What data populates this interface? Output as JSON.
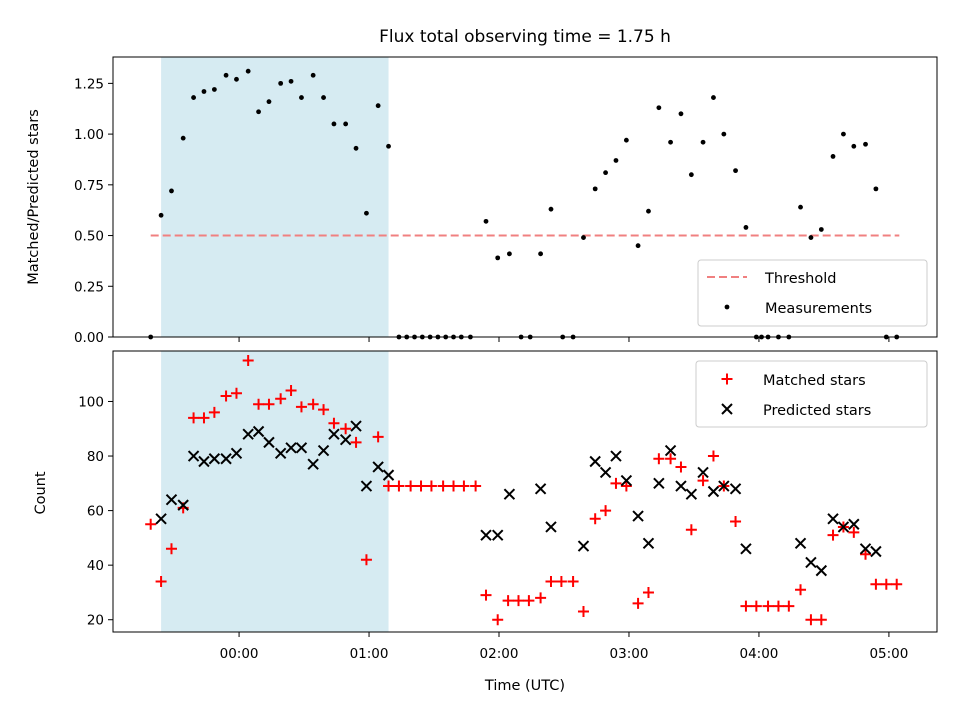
{
  "chart_data": {
    "title": "Flux total observing time = 1.75 h",
    "xlabel": "Time (UTC)",
    "x_units": "hours relative to 00:00 UTC",
    "x_ticks": [
      {
        "value": 0,
        "label": "00:00"
      },
      {
        "value": 1,
        "label": "01:00"
      },
      {
        "value": 2,
        "label": "02:00"
      },
      {
        "value": 3,
        "label": "03:00"
      },
      {
        "value": 4,
        "label": "04:00"
      },
      {
        "value": 5,
        "label": "05:00"
      }
    ],
    "xlim": [
      -0.97,
      5.37
    ],
    "highlight": {
      "type": "shaded-region",
      "color": "#add8e6",
      "x": [
        -0.6,
        1.15
      ]
    },
    "panels": [
      {
        "type": "scatter",
        "ylabel": "Matched/Predicted stars",
        "ylim": [
          0,
          1.38
        ],
        "y_ticks": [
          {
            "value": 0.0,
            "label": "0.00"
          },
          {
            "value": 0.25,
            "label": "0.25"
          },
          {
            "value": 0.5,
            "label": "0.50"
          },
          {
            "value": 0.75,
            "label": "0.75"
          },
          {
            "value": 1.0,
            "label": "1.00"
          },
          {
            "value": 1.25,
            "label": "1.25"
          }
        ],
        "legend_position": "lower-right",
        "threshold": {
          "name": "Threshold",
          "y": 0.5,
          "x": [
            -0.68,
            5.08
          ],
          "color": "#f08080",
          "style": "dashed"
        },
        "series": [
          {
            "name": "Measurements",
            "marker": "dot",
            "color": "#000000",
            "points": [
              [
                -0.68,
                0.0
              ],
              [
                -0.6,
                0.6
              ],
              [
                -0.52,
                0.72
              ],
              [
                -0.43,
                0.98
              ],
              [
                -0.35,
                1.18
              ],
              [
                -0.27,
                1.21
              ],
              [
                -0.19,
                1.22
              ],
              [
                -0.1,
                1.29
              ],
              [
                -0.02,
                1.27
              ],
              [
                0.07,
                1.31
              ],
              [
                0.15,
                1.11
              ],
              [
                0.23,
                1.16
              ],
              [
                0.32,
                1.25
              ],
              [
                0.4,
                1.26
              ],
              [
                0.48,
                1.18
              ],
              [
                0.57,
                1.29
              ],
              [
                0.65,
                1.18
              ],
              [
                0.73,
                1.05
              ],
              [
                0.82,
                1.05
              ],
              [
                0.9,
                0.93
              ],
              [
                0.98,
                0.61
              ],
              [
                1.07,
                1.14
              ],
              [
                1.15,
                0.94
              ],
              [
                1.23,
                0.0
              ],
              [
                1.29,
                0.0
              ],
              [
                1.35,
                0.0
              ],
              [
                1.41,
                0.0
              ],
              [
                1.47,
                0.0
              ],
              [
                1.53,
                0.0
              ],
              [
                1.59,
                0.0
              ],
              [
                1.65,
                0.0
              ],
              [
                1.71,
                0.0
              ],
              [
                1.78,
                0.0
              ],
              [
                1.9,
                0.57
              ],
              [
                1.99,
                0.39
              ],
              [
                2.08,
                0.41
              ],
              [
                2.17,
                0.0
              ],
              [
                2.24,
                0.0
              ],
              [
                2.32,
                0.41
              ],
              [
                2.4,
                0.63
              ],
              [
                2.49,
                0.0
              ],
              [
                2.57,
                0.0
              ],
              [
                2.65,
                0.49
              ],
              [
                2.74,
                0.73
              ],
              [
                2.82,
                0.81
              ],
              [
                2.9,
                0.87
              ],
              [
                2.98,
                0.97
              ],
              [
                3.07,
                0.45
              ],
              [
                3.15,
                0.62
              ],
              [
                3.23,
                1.13
              ],
              [
                3.32,
                0.96
              ],
              [
                3.4,
                1.1
              ],
              [
                3.48,
                0.8
              ],
              [
                3.57,
                0.96
              ],
              [
                3.65,
                1.18
              ],
              [
                3.73,
                1.0
              ],
              [
                3.82,
                0.82
              ],
              [
                3.9,
                0.54
              ],
              [
                3.98,
                0.0
              ],
              [
                4.02,
                0.0
              ],
              [
                4.07,
                0.0
              ],
              [
                4.15,
                0.0
              ],
              [
                4.23,
                0.0
              ],
              [
                4.32,
                0.64
              ],
              [
                4.4,
                0.49
              ],
              [
                4.48,
                0.53
              ],
              [
                4.57,
                0.89
              ],
              [
                4.65,
                1.0
              ],
              [
                4.73,
                0.94
              ],
              [
                4.82,
                0.95
              ],
              [
                4.9,
                0.73
              ],
              [
                4.98,
                0.0
              ],
              [
                5.06,
                0.0
              ]
            ]
          }
        ]
      },
      {
        "type": "scatter",
        "ylabel": "Count",
        "ylim": [
          15.5,
          118.5
        ],
        "y_ticks": [
          {
            "value": 20,
            "label": "20"
          },
          {
            "value": 40,
            "label": "40"
          },
          {
            "value": 60,
            "label": "60"
          },
          {
            "value": 80,
            "label": "80"
          },
          {
            "value": 100,
            "label": "100"
          }
        ],
        "legend_position": "top-right",
        "series": [
          {
            "name": "Matched stars",
            "marker": "plus",
            "color": "#ff0000",
            "points": [
              [
                -0.68,
                55
              ],
              [
                -0.6,
                34
              ],
              [
                -0.52,
                46
              ],
              [
                -0.43,
                61
              ],
              [
                -0.35,
                94
              ],
              [
                -0.27,
                94
              ],
              [
                -0.19,
                96
              ],
              [
                -0.1,
                102
              ],
              [
                -0.02,
                103
              ],
              [
                0.07,
                115
              ],
              [
                0.15,
                99
              ],
              [
                0.23,
                99
              ],
              [
                0.32,
                101
              ],
              [
                0.4,
                104
              ],
              [
                0.48,
                98
              ],
              [
                0.57,
                99
              ],
              [
                0.65,
                97
              ],
              [
                0.73,
                92
              ],
              [
                0.82,
                90
              ],
              [
                0.9,
                85
              ],
              [
                0.98,
                42
              ],
              [
                1.07,
                87
              ],
              [
                1.15,
                69
              ],
              [
                1.23,
                69
              ],
              [
                1.32,
                69
              ],
              [
                1.4,
                69
              ],
              [
                1.48,
                69
              ],
              [
                1.57,
                69
              ],
              [
                1.65,
                69
              ],
              [
                1.73,
                69
              ],
              [
                1.82,
                69
              ],
              [
                1.9,
                29
              ],
              [
                1.99,
                20
              ],
              [
                2.07,
                27
              ],
              [
                2.15,
                27
              ],
              [
                2.23,
                27
              ],
              [
                2.32,
                28
              ],
              [
                2.4,
                34
              ],
              [
                2.48,
                34
              ],
              [
                2.57,
                34
              ],
              [
                2.65,
                23
              ],
              [
                2.74,
                57
              ],
              [
                2.82,
                60
              ],
              [
                2.9,
                70
              ],
              [
                2.98,
                69
              ],
              [
                3.07,
                26
              ],
              [
                3.15,
                30
              ],
              [
                3.23,
                79
              ],
              [
                3.32,
                79
              ],
              [
                3.4,
                76
              ],
              [
                3.48,
                53
              ],
              [
                3.57,
                71
              ],
              [
                3.65,
                80
              ],
              [
                3.73,
                69
              ],
              [
                3.82,
                56
              ],
              [
                3.9,
                25
              ],
              [
                3.98,
                25
              ],
              [
                4.07,
                25
              ],
              [
                4.15,
                25
              ],
              [
                4.23,
                25
              ],
              [
                4.32,
                31
              ],
              [
                4.4,
                20
              ],
              [
                4.48,
                20
              ],
              [
                4.57,
                51
              ],
              [
                4.65,
                54
              ],
              [
                4.73,
                52
              ],
              [
                4.82,
                44
              ],
              [
                4.9,
                33
              ],
              [
                4.98,
                33
              ],
              [
                5.06,
                33
              ]
            ]
          },
          {
            "name": "Predicted stars",
            "marker": "x",
            "color": "#000000",
            "points": [
              [
                -0.6,
                57
              ],
              [
                -0.52,
                64
              ],
              [
                -0.43,
                62
              ],
              [
                -0.35,
                80
              ],
              [
                -0.27,
                78
              ],
              [
                -0.19,
                79
              ],
              [
                -0.1,
                79
              ],
              [
                -0.02,
                81
              ],
              [
                0.07,
                88
              ],
              [
                0.15,
                89
              ],
              [
                0.23,
                85
              ],
              [
                0.32,
                81
              ],
              [
                0.4,
                83
              ],
              [
                0.48,
                83
              ],
              [
                0.57,
                77
              ],
              [
                0.65,
                82
              ],
              [
                0.73,
                88
              ],
              [
                0.82,
                86
              ],
              [
                0.9,
                91
              ],
              [
                0.98,
                69
              ],
              [
                1.07,
                76
              ],
              [
                1.15,
                73
              ],
              [
                1.9,
                51
              ],
              [
                1.99,
                51
              ],
              [
                2.08,
                66
              ],
              [
                2.32,
                68
              ],
              [
                2.4,
                54
              ],
              [
                2.65,
                47
              ],
              [
                2.74,
                78
              ],
              [
                2.82,
                74
              ],
              [
                2.9,
                80
              ],
              [
                2.98,
                71
              ],
              [
                3.07,
                58
              ],
              [
                3.15,
                48
              ],
              [
                3.23,
                70
              ],
              [
                3.32,
                82
              ],
              [
                3.4,
                69
              ],
              [
                3.48,
                66
              ],
              [
                3.57,
                74
              ],
              [
                3.65,
                67
              ],
              [
                3.73,
                69
              ],
              [
                3.82,
                68
              ],
              [
                3.9,
                46
              ],
              [
                4.32,
                48
              ],
              [
                4.4,
                41
              ],
              [
                4.48,
                38
              ],
              [
                4.57,
                57
              ],
              [
                4.65,
                54
              ],
              [
                4.73,
                55
              ],
              [
                4.82,
                46
              ],
              [
                4.9,
                45
              ]
            ]
          }
        ]
      }
    ]
  }
}
